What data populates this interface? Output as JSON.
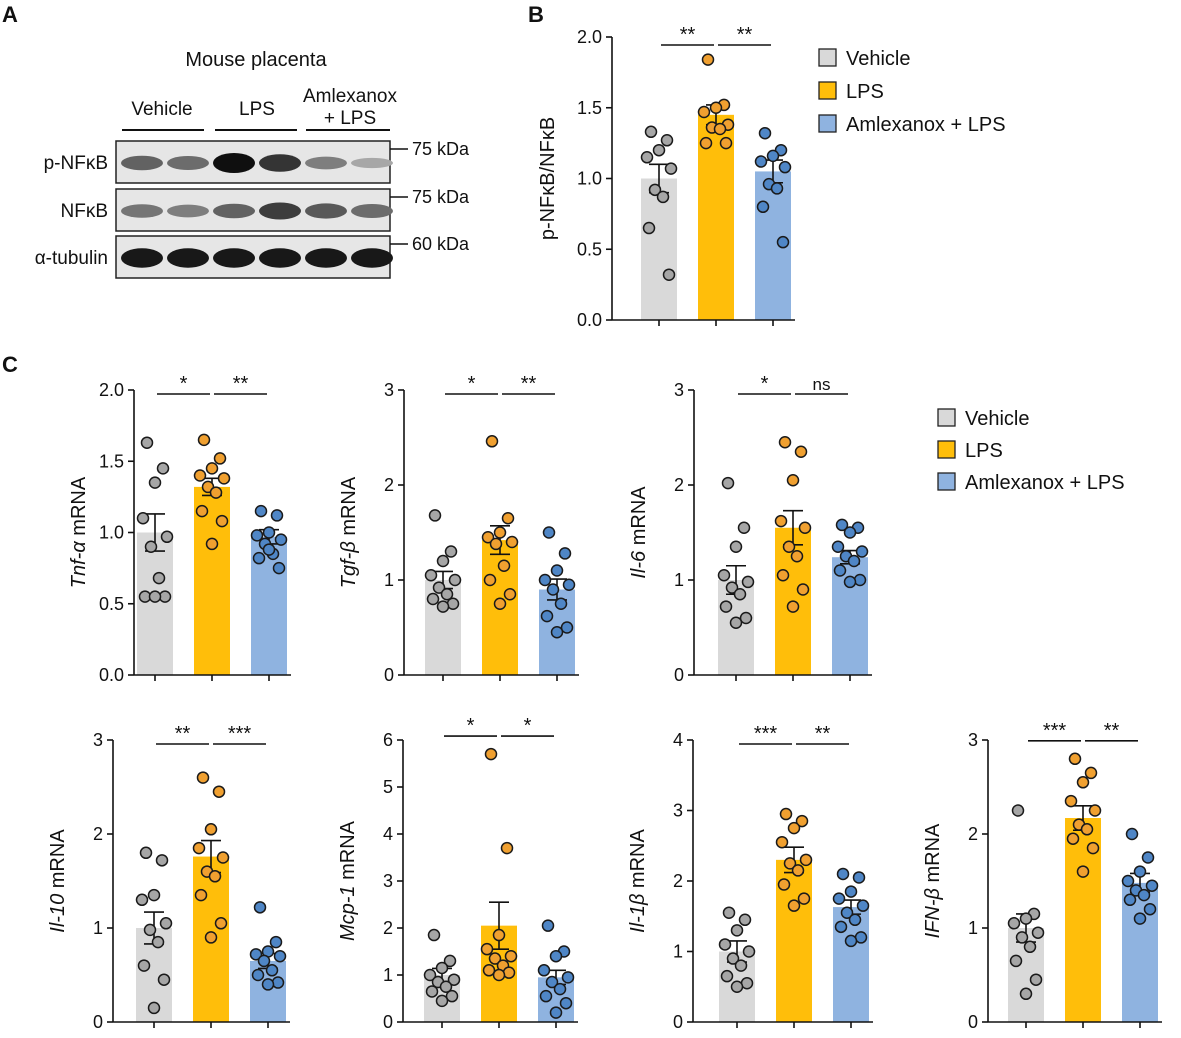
{
  "panel_labels": {
    "a": "A",
    "b": "B",
    "c": "C"
  },
  "colors": {
    "vehicle": "#d9d9d9",
    "lps": "#ffbe0a",
    "amlexanox": "#8fb3e0",
    "dot_vehicle": "#a6a6a6",
    "dot_lps": "#f0a030",
    "dot_amlexanox": "#4f86c6"
  },
  "western_blot": {
    "title": "Mouse placenta",
    "groups": [
      "Vehicle",
      "LPS",
      "Amlexanox",
      "+ LPS"
    ],
    "rows": [
      {
        "label": "p-NFκB",
        "marker": "75 kDa",
        "intensities": [
          0.55,
          0.5,
          1.0,
          0.8,
          0.4,
          0.18
        ]
      },
      {
        "label": "NFκB",
        "marker": "75 kDa",
        "intensities": [
          0.45,
          0.4,
          0.55,
          0.75,
          0.6,
          0.5
        ]
      },
      {
        "label": "α-tubulin",
        "marker": "60 kDa",
        "intensities": [
          0.95,
          0.95,
          0.95,
          0.95,
          0.95,
          0.95
        ]
      }
    ]
  },
  "legend_b": [
    "Vehicle",
    "LPS",
    "Amlexanox + LPS"
  ],
  "legend_c": [
    "Vehicle",
    "LPS",
    "Amlexanox + LPS"
  ],
  "chart_data": [
    {
      "id": "b",
      "type": "bar",
      "title": "",
      "ylabel": "p-NFκB/NFκB",
      "ylabel_parts": [
        {
          "t": "p-NFκB/NFκB",
          "i": false
        }
      ],
      "categories": [
        "Vehicle",
        "LPS",
        "Amlexanox + LPS"
      ],
      "values": [
        1.0,
        1.45,
        1.05
      ],
      "errors": [
        0.1,
        0.07,
        0.08
      ],
      "ylim": [
        0,
        2.0
      ],
      "ticks": [
        0.0,
        0.5,
        1.0,
        1.5,
        2.0
      ],
      "tick_labels": [
        "0.0",
        "0.5",
        "1.0",
        "1.5",
        "2.0"
      ],
      "points": [
        [
          1.33,
          1.27,
          1.2,
          1.15,
          1.07,
          0.92,
          0.87,
          0.65,
          0.32
        ],
        [
          1.84,
          1.52,
          1.5,
          1.47,
          1.38,
          1.36,
          1.35,
          1.25,
          1.25
        ],
        [
          1.32,
          1.2,
          1.16,
          1.12,
          1.08,
          0.96,
          0.93,
          0.8,
          0.55
        ]
      ],
      "sig": [
        {
          "from": 0,
          "to": 1,
          "text": "**"
        },
        {
          "from": 1,
          "to": 2,
          "text": "**"
        }
      ]
    },
    {
      "id": "tnf",
      "type": "bar",
      "ylabel": "Tnf-α mRNA",
      "ylabel_parts": [
        {
          "t": "Tnf-α",
          "i": true
        },
        {
          "t": " mRNA",
          "i": false
        }
      ],
      "categories": [
        "Vehicle",
        "LPS",
        "Amlexanox + LPS"
      ],
      "values": [
        1.0,
        1.32,
        0.97
      ],
      "errors": [
        0.13,
        0.06,
        0.05
      ],
      "ylim": [
        0,
        2.0
      ],
      "ticks": [
        0.0,
        0.5,
        1.0,
        1.5,
        2.0
      ],
      "tick_labels": [
        "0.0",
        "0.5",
        "1.0",
        "1.5",
        "2.0"
      ],
      "points": [
        [
          1.63,
          1.45,
          1.35,
          1.1,
          0.97,
          0.9,
          0.68,
          0.55,
          0.55,
          0.55
        ],
        [
          1.65,
          1.52,
          1.45,
          1.4,
          1.38,
          1.32,
          1.28,
          1.15,
          1.08,
          0.92
        ],
        [
          1.15,
          1.12,
          1.0,
          0.98,
          0.95,
          0.92,
          0.85,
          0.82,
          0.75,
          0.88
        ]
      ],
      "sig": [
        {
          "from": 0,
          "to": 1,
          "text": "*"
        },
        {
          "from": 1,
          "to": 2,
          "text": "**"
        }
      ]
    },
    {
      "id": "tgf",
      "type": "bar",
      "ylabel": "Tgf-β mRNA",
      "ylabel_parts": [
        {
          "t": "Tgf-β",
          "i": true
        },
        {
          "t": " mRNA",
          "i": false
        }
      ],
      "categories": [
        "Vehicle",
        "LPS",
        "Amlexanox + LPS"
      ],
      "values": [
        1.0,
        1.42,
        0.9
      ],
      "errors": [
        0.09,
        0.15,
        0.11
      ],
      "ylim": [
        0,
        3
      ],
      "ticks": [
        0,
        1,
        2,
        3
      ],
      "tick_labels": [
        "0",
        "1",
        "2",
        "3"
      ],
      "points": [
        [
          1.68,
          1.3,
          1.2,
          1.05,
          1.0,
          0.92,
          0.85,
          0.8,
          0.75,
          0.72
        ],
        [
          2.46,
          1.65,
          1.5,
          1.45,
          1.4,
          1.38,
          1.15,
          1.0,
          0.85,
          0.75
        ],
        [
          1.5,
          1.28,
          1.1,
          1.0,
          0.95,
          0.9,
          0.75,
          0.62,
          0.5,
          0.45
        ]
      ],
      "sig": [
        {
          "from": 0,
          "to": 1,
          "text": "*"
        },
        {
          "from": 1,
          "to": 2,
          "text": "**"
        }
      ]
    },
    {
      "id": "il6",
      "type": "bar",
      "ylabel": "Il-6 mRNA",
      "ylabel_parts": [
        {
          "t": "Il-6",
          "i": true
        },
        {
          "t": " mRNA",
          "i": false
        }
      ],
      "categories": [
        "Vehicle",
        "LPS",
        "Amlexanox + LPS"
      ],
      "values": [
        1.0,
        1.55,
        1.24
      ],
      "errors": [
        0.15,
        0.18,
        0.07
      ],
      "ylim": [
        0,
        3
      ],
      "ticks": [
        0,
        1,
        2,
        3
      ],
      "tick_labels": [
        "0",
        "1",
        "2",
        "3"
      ],
      "points": [
        [
          2.02,
          1.55,
          1.35,
          1.05,
          0.98,
          0.92,
          0.85,
          0.72,
          0.6,
          0.55
        ],
        [
          2.45,
          2.35,
          2.05,
          1.62,
          1.55,
          1.35,
          1.25,
          1.05,
          0.9,
          0.72
        ],
        [
          1.58,
          1.55,
          1.5,
          1.35,
          1.3,
          1.25,
          1.2,
          1.1,
          1.0,
          0.98
        ]
      ],
      "sig": [
        {
          "from": 0,
          "to": 1,
          "text": "*"
        },
        {
          "from": 1,
          "to": 2,
          "text": "ns"
        }
      ]
    },
    {
      "id": "il10",
      "type": "bar",
      "ylabel": "Il-10 mRNA",
      "ylabel_parts": [
        {
          "t": "Il-10",
          "i": true
        },
        {
          "t": " mRNA",
          "i": false
        }
      ],
      "categories": [
        "Vehicle",
        "LPS",
        "Amlexanox + LPS"
      ],
      "values": [
        1.0,
        1.76,
        0.65
      ],
      "errors": [
        0.17,
        0.17,
        0.08
      ],
      "ylim": [
        0,
        3
      ],
      "ticks": [
        0,
        1,
        2,
        3
      ],
      "tick_labels": [
        "0",
        "1",
        "2",
        "3"
      ],
      "points": [
        [
          1.8,
          1.72,
          1.35,
          1.3,
          1.05,
          0.98,
          0.85,
          0.6,
          0.45,
          0.15
        ],
        [
          2.6,
          2.45,
          2.05,
          1.85,
          1.75,
          1.6,
          1.55,
          1.35,
          1.05,
          0.9
        ],
        [
          1.22,
          0.85,
          0.75,
          0.72,
          0.7,
          0.65,
          0.55,
          0.5,
          0.42,
          0.4
        ]
      ],
      "sig": [
        {
          "from": 0,
          "to": 1,
          "text": "**"
        },
        {
          "from": 1,
          "to": 2,
          "text": "***"
        }
      ]
    },
    {
      "id": "mcp1",
      "type": "bar",
      "ylabel": "Mcp-1 mRNA",
      "ylabel_parts": [
        {
          "t": "Mcp-1",
          "i": true
        },
        {
          "t": " mRNA",
          "i": false
        }
      ],
      "categories": [
        "Vehicle",
        "LPS",
        "Amlexanox + LPS"
      ],
      "values": [
        1.0,
        2.05,
        0.95
      ],
      "errors": [
        0.14,
        0.5,
        0.15
      ],
      "ylim": [
        0,
        6
      ],
      "ticks": [
        0,
        1,
        2,
        3,
        4,
        5,
        6
      ],
      "tick_labels": [
        "0",
        "1",
        "2",
        "3",
        "4",
        "5",
        "6"
      ],
      "points": [
        [
          1.85,
          1.3,
          1.15,
          1.0,
          0.9,
          0.85,
          0.75,
          0.65,
          0.55,
          0.45
        ],
        [
          5.7,
          3.7,
          1.85,
          1.55,
          1.4,
          1.35,
          1.2,
          1.1,
          1.05,
          1.0
        ],
        [
          2.05,
          1.5,
          1.4,
          1.1,
          0.95,
          0.85,
          0.7,
          0.55,
          0.4,
          0.2
        ]
      ],
      "sig": [
        {
          "from": 0,
          "to": 1,
          "text": "*"
        },
        {
          "from": 1,
          "to": 2,
          "text": "*"
        }
      ]
    },
    {
      "id": "il1b",
      "type": "bar",
      "ylabel": "Il-1β mRNA",
      "ylabel_parts": [
        {
          "t": "Il-1β",
          "i": true
        },
        {
          "t": " mRNA",
          "i": false
        }
      ],
      "categories": [
        "Vehicle",
        "LPS",
        "Amlexanox + LPS"
      ],
      "values": [
        1.0,
        2.3,
        1.63
      ],
      "errors": [
        0.15,
        0.18,
        0.1
      ],
      "ylim": [
        0,
        4
      ],
      "ticks": [
        0,
        1,
        2,
        3,
        4
      ],
      "tick_labels": [
        "0",
        "1",
        "2",
        "3",
        "4"
      ],
      "points": [
        [
          1.55,
          1.45,
          1.3,
          1.1,
          1.0,
          0.9,
          0.8,
          0.65,
          0.55,
          0.5
        ],
        [
          2.95,
          2.85,
          2.75,
          2.55,
          2.3,
          2.25,
          2.15,
          1.95,
          1.75,
          1.65
        ],
        [
          2.1,
          2.05,
          1.85,
          1.75,
          1.65,
          1.55,
          1.45,
          1.35,
          1.2,
          1.15
        ]
      ],
      "sig": [
        {
          "from": 0,
          "to": 1,
          "text": "***"
        },
        {
          "from": 1,
          "to": 2,
          "text": "**"
        }
      ]
    },
    {
      "id": "ifnb",
      "type": "bar",
      "ylabel": "IFN-β mRNA",
      "ylabel_parts": [
        {
          "t": "IFN-β",
          "i": true
        },
        {
          "t": " mRNA",
          "i": false
        }
      ],
      "categories": [
        "Vehicle",
        "LPS",
        "Amlexanox + LPS"
      ],
      "values": [
        1.0,
        2.17,
        1.48
      ],
      "errors": [
        0.15,
        0.13,
        0.1
      ],
      "ylim": [
        0,
        3
      ],
      "ticks": [
        0,
        1,
        2,
        3
      ],
      "tick_labels": [
        "0",
        "1",
        "2",
        "3"
      ],
      "points": [
        [
          2.25,
          1.15,
          1.1,
          1.05,
          0.95,
          0.9,
          0.8,
          0.65,
          0.45,
          0.3
        ],
        [
          2.8,
          2.65,
          2.55,
          2.35,
          2.25,
          2.1,
          2.05,
          1.95,
          1.85,
          1.6
        ],
        [
          2.0,
          1.75,
          1.6,
          1.5,
          1.45,
          1.4,
          1.35,
          1.3,
          1.2,
          1.1
        ]
      ],
      "sig": [
        {
          "from": 0,
          "to": 1,
          "text": "***"
        },
        {
          "from": 1,
          "to": 2,
          "text": "**"
        }
      ]
    }
  ]
}
